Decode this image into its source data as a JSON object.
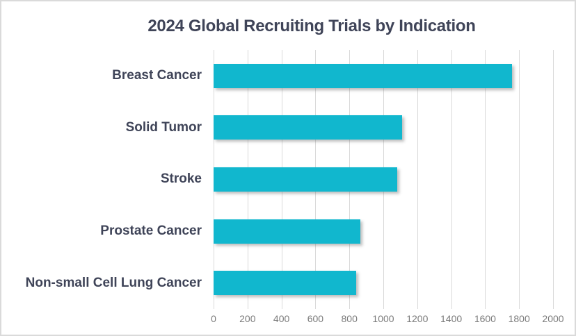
{
  "chart_data": {
    "type": "bar",
    "orientation": "horizontal",
    "title": "2024 Global Recruiting Trials by Indication",
    "categories": [
      "Breast Cancer",
      "Solid Tumor",
      "Stroke",
      "Prostate Cancer",
      "Non-small Cell Lung Cancer"
    ],
    "values": [
      1760,
      1110,
      1080,
      865,
      840
    ],
    "xlabel": "",
    "ylabel": "",
    "xlim": [
      0,
      2000
    ],
    "x_ticks": [
      0,
      200,
      400,
      600,
      800,
      1000,
      1200,
      1400,
      1600,
      1800,
      2000
    ],
    "grid": "vertical-only",
    "legend": "none",
    "colors": {
      "bar": "#11b7ce",
      "title_text": "#3f4458",
      "category_text": "#3f4458",
      "tick_text": "#7a7a7a",
      "gridline": "#d9d9d9",
      "background": "#ffffff",
      "border": "#dadada"
    }
  }
}
